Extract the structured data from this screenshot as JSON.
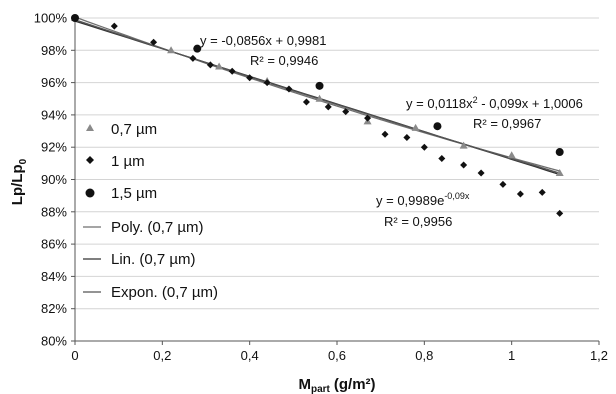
{
  "chart_data": {
    "type": "scatter",
    "xlabel": "M",
    "xlabel_sub": "part",
    "xlabel_unit": "(g/m²)",
    "ylabel": "Lp/Lp",
    "ylabel_sub": "0",
    "xlim": [
      0,
      1.2
    ],
    "ylim": [
      80,
      100
    ],
    "x_ticks": [
      "0",
      "0,2",
      "0,4",
      "0,6",
      "0,8",
      "1",
      "1,2"
    ],
    "y_ticks": [
      "80%",
      "82%",
      "84%",
      "86%",
      "88%",
      "90%",
      "92%",
      "94%",
      "96%",
      "98%",
      "100%"
    ],
    "grid": "horizontal",
    "legend_position": "left",
    "series": [
      {
        "name": "0,7 µm",
        "marker": "triangle",
        "color": "#8a8a8a",
        "points": [
          [
            0,
            100
          ],
          [
            0.22,
            98
          ],
          [
            0.33,
            97
          ],
          [
            0.44,
            96.1
          ],
          [
            0.56,
            95
          ],
          [
            0.67,
            93.6
          ],
          [
            0.78,
            93.2
          ],
          [
            0.89,
            92.1
          ],
          [
            1.0,
            91.5
          ],
          [
            1.11,
            90.4
          ]
        ]
      },
      {
        "name": "1 µm",
        "marker": "diamond",
        "color": "#111111",
        "points": [
          [
            0,
            100
          ],
          [
            0.09,
            99.5
          ],
          [
            0.18,
            98.5
          ],
          [
            0.27,
            97.5
          ],
          [
            0.31,
            97.1
          ],
          [
            0.36,
            96.7
          ],
          [
            0.4,
            96.3
          ],
          [
            0.44,
            96.0
          ],
          [
            0.49,
            95.6
          ],
          [
            0.53,
            94.8
          ],
          [
            0.58,
            94.5
          ],
          [
            0.62,
            94.2
          ],
          [
            0.67,
            93.8
          ],
          [
            0.71,
            92.8
          ],
          [
            0.76,
            92.6
          ],
          [
            0.8,
            92.0
          ],
          [
            0.84,
            91.3
          ],
          [
            0.89,
            90.9
          ],
          [
            0.93,
            90.4
          ],
          [
            0.98,
            89.7
          ],
          [
            1.02,
            89.1
          ],
          [
            1.07,
            89.2
          ],
          [
            1.11,
            87.9
          ]
        ]
      },
      {
        "name": "1,5 µm",
        "marker": "circle",
        "color": "#111111",
        "points": [
          [
            0,
            100
          ],
          [
            0.28,
            98.1
          ],
          [
            0.56,
            95.8
          ],
          [
            0.83,
            93.3
          ],
          [
            1.11,
            91.7
          ]
        ]
      }
    ],
    "trendlines": [
      {
        "name": "Poly. (0,7 µm)",
        "kind": "poly",
        "a": 0.0118,
        "b": -0.099,
        "c": 1.0006,
        "color": "#6f6f6f"
      },
      {
        "name": "Lin. (0,7 µm)",
        "kind": "linear",
        "slope": -0.0856,
        "intercept": 0.9981,
        "color": "#333333"
      },
      {
        "name": "Expon. (0,7 µm)",
        "kind": "exp",
        "a": 0.9989,
        "k": -0.09,
        "color": "#555555"
      }
    ],
    "annotations": {
      "linear_eq": "y = -0,0856x + 0,9981",
      "linear_r2": "R² = 0,9946",
      "poly_eq": "y = 0,0118x² - 0,099x + 1,0006",
      "poly_r2": "R² = 0,9967",
      "exp_eq_base": "y = 0,9989e",
      "exp_eq_exp": "-0,09x",
      "exp_r2": "R² = 0,9956"
    }
  }
}
